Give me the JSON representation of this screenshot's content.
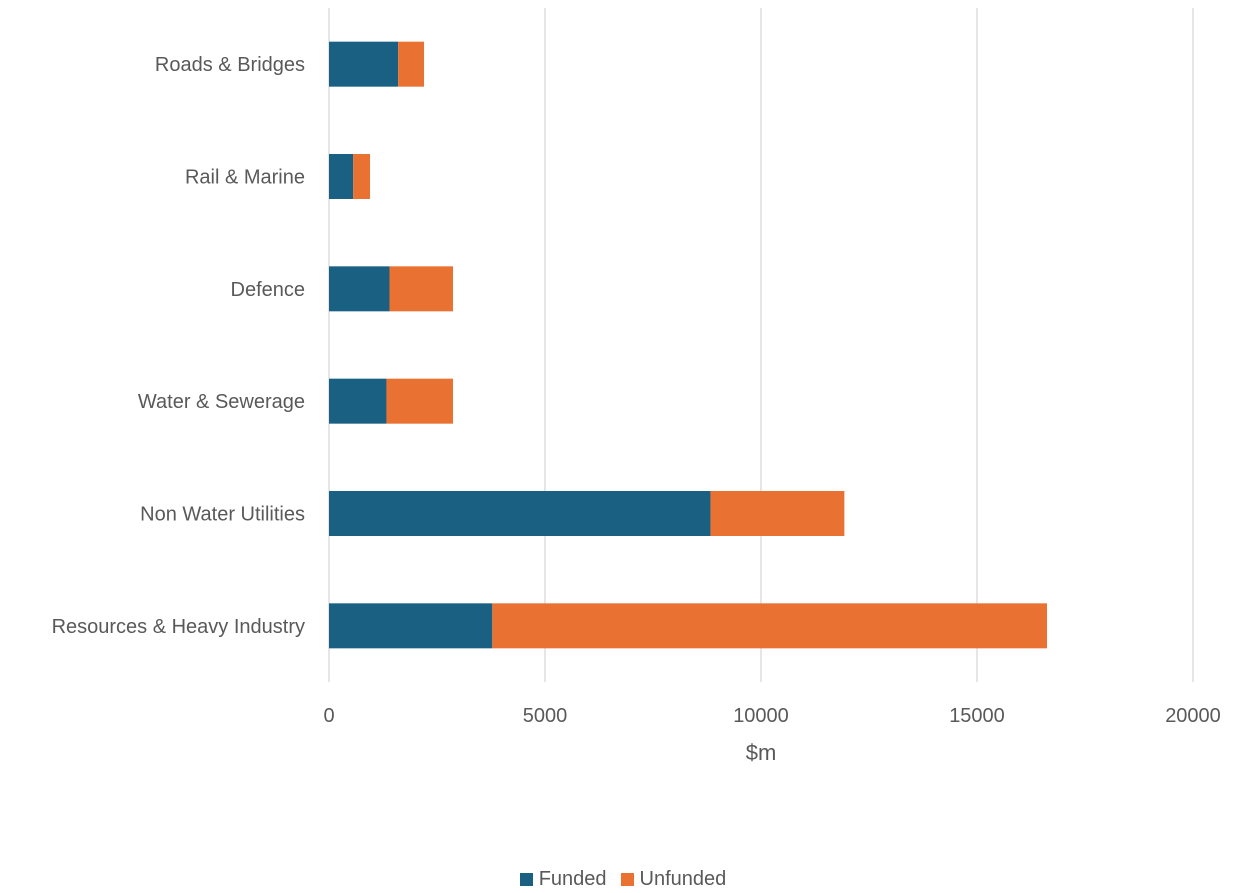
{
  "chart_data": {
    "type": "bar",
    "orientation": "horizontal",
    "stacked": true,
    "categories": [
      "Roads & Bridges",
      "Rail & Marine",
      "Defence",
      "Water & Sewerage",
      "Non Water Utilities",
      "Resources & Heavy Industry"
    ],
    "series": [
      {
        "name": "Funded",
        "color": "#1a6082",
        "values": [
          1600,
          560,
          1400,
          1330,
          8830,
          3780
        ]
      },
      {
        "name": "Unfunded",
        "color": "#e97132",
        "values": [
          600,
          390,
          1470,
          1540,
          3100,
          12840
        ]
      }
    ],
    "xlabel": "$m",
    "xlim": [
      0,
      20000
    ],
    "xticks": [
      "0",
      "5000",
      "10000",
      "15000",
      "20000"
    ],
    "grid": "vertical",
    "legend_position": "bottom"
  }
}
